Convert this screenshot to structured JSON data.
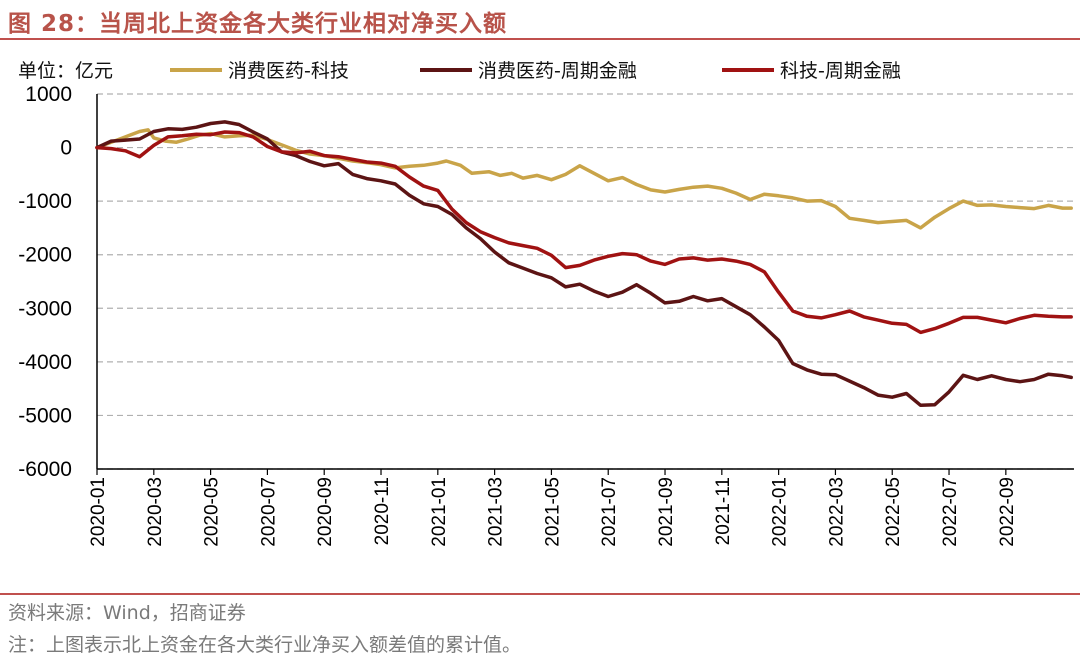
{
  "figure": {
    "title": "图 28：当周北上资金各大类行业相对净买入额",
    "source": "资料来源：Wind，招商证券",
    "note": "注：上图表示北上资金在各大类行业净买入额差值的累计值。"
  },
  "colors": {
    "accent": "#C0504D",
    "grid": "#B0B0B0"
  },
  "chart_data": {
    "type": "line",
    "unit_label": "单位：亿元",
    "ylim": [
      -6000,
      1000
    ],
    "yticks": [
      1000,
      0,
      -1000,
      -2000,
      -3000,
      -4000,
      -5000,
      -6000
    ],
    "xlim": [
      0,
      34.4
    ],
    "xticks": [
      {
        "x": 0,
        "label": "2020-01"
      },
      {
        "x": 2,
        "label": "2020-03"
      },
      {
        "x": 4,
        "label": "2020-05"
      },
      {
        "x": 6,
        "label": "2020-07"
      },
      {
        "x": 8,
        "label": "2020-09"
      },
      {
        "x": 10,
        "label": "2020-11"
      },
      {
        "x": 12,
        "label": "2021-01"
      },
      {
        "x": 14,
        "label": "2021-03"
      },
      {
        "x": 16,
        "label": "2021-05"
      },
      {
        "x": 18,
        "label": "2021-07"
      },
      {
        "x": 20,
        "label": "2021-09"
      },
      {
        "x": 22,
        "label": "2021-11"
      },
      {
        "x": 24,
        "label": "2022-01"
      },
      {
        "x": 26,
        "label": "2022-03"
      },
      {
        "x": 28,
        "label": "2022-05"
      },
      {
        "x": 30,
        "label": "2022-07"
      },
      {
        "x": 32,
        "label": "2022-09"
      }
    ],
    "series": [
      {
        "name": "消费医药-科技",
        "color": "#C9A449",
        "points": [
          [
            0,
            0
          ],
          [
            0.5,
            100
          ],
          [
            1,
            200
          ],
          [
            1.5,
            300
          ],
          [
            1.8,
            330
          ],
          [
            2,
            180
          ],
          [
            2.4,
            120
          ],
          [
            2.8,
            100
          ],
          [
            3.2,
            160
          ],
          [
            3.6,
            230
          ],
          [
            4,
            260
          ],
          [
            4.5,
            200
          ],
          [
            5,
            220
          ],
          [
            5.5,
            230
          ],
          [
            6,
            150
          ],
          [
            6.5,
            50
          ],
          [
            7,
            -50
          ],
          [
            7.5,
            -120
          ],
          [
            8,
            -150
          ],
          [
            8.5,
            -200
          ],
          [
            9,
            -250
          ],
          [
            9.5,
            -280
          ],
          [
            10,
            -320
          ],
          [
            10.5,
            -380
          ],
          [
            11,
            -350
          ],
          [
            11.5,
            -330
          ],
          [
            12,
            -290
          ],
          [
            12.3,
            -250
          ],
          [
            12.8,
            -330
          ],
          [
            13.2,
            -480
          ],
          [
            13.8,
            -450
          ],
          [
            14.2,
            -520
          ],
          [
            14.6,
            -480
          ],
          [
            15,
            -570
          ],
          [
            15.5,
            -520
          ],
          [
            16,
            -600
          ],
          [
            16.5,
            -500
          ],
          [
            17,
            -340
          ],
          [
            17.5,
            -480
          ],
          [
            18,
            -620
          ],
          [
            18.5,
            -560
          ],
          [
            19,
            -690
          ],
          [
            19.5,
            -790
          ],
          [
            20,
            -830
          ],
          [
            20.5,
            -780
          ],
          [
            21,
            -740
          ],
          [
            21.5,
            -720
          ],
          [
            22,
            -760
          ],
          [
            22.5,
            -850
          ],
          [
            23,
            -970
          ],
          [
            23.5,
            -870
          ],
          [
            24,
            -900
          ],
          [
            24.5,
            -940
          ],
          [
            25,
            -1000
          ],
          [
            25.5,
            -990
          ],
          [
            26,
            -1100
          ],
          [
            26.5,
            -1320
          ],
          [
            27,
            -1360
          ],
          [
            27.5,
            -1400
          ],
          [
            28,
            -1380
          ],
          [
            28.5,
            -1360
          ],
          [
            29,
            -1500
          ],
          [
            29.5,
            -1300
          ],
          [
            30,
            -1140
          ],
          [
            30.5,
            -1000
          ],
          [
            31,
            -1080
          ],
          [
            31.5,
            -1070
          ],
          [
            32,
            -1100
          ],
          [
            32.5,
            -1120
          ],
          [
            33,
            -1140
          ],
          [
            33.5,
            -1080
          ],
          [
            34,
            -1130
          ],
          [
            34.3,
            -1130
          ]
        ]
      },
      {
        "name": "消费医药-周期金融",
        "color": "#5C1414",
        "points": [
          [
            0,
            0
          ],
          [
            0.5,
            120
          ],
          [
            1,
            140
          ],
          [
            1.5,
            160
          ],
          [
            2,
            300
          ],
          [
            2.5,
            350
          ],
          [
            3,
            340
          ],
          [
            3.5,
            380
          ],
          [
            4,
            450
          ],
          [
            4.5,
            480
          ],
          [
            5,
            430
          ],
          [
            5.5,
            290
          ],
          [
            6,
            160
          ],
          [
            6.5,
            -80
          ],
          [
            7,
            -150
          ],
          [
            7.5,
            -260
          ],
          [
            8,
            -340
          ],
          [
            8.5,
            -300
          ],
          [
            9,
            -500
          ],
          [
            9.5,
            -580
          ],
          [
            10,
            -620
          ],
          [
            10.5,
            -680
          ],
          [
            11,
            -890
          ],
          [
            11.5,
            -1050
          ],
          [
            12,
            -1100
          ],
          [
            12.5,
            -1250
          ],
          [
            13,
            -1500
          ],
          [
            13.5,
            -1700
          ],
          [
            14,
            -1950
          ],
          [
            14.5,
            -2150
          ],
          [
            15,
            -2250
          ],
          [
            15.5,
            -2350
          ],
          [
            16,
            -2430
          ],
          [
            16.5,
            -2600
          ],
          [
            17,
            -2550
          ],
          [
            17.5,
            -2680
          ],
          [
            18,
            -2780
          ],
          [
            18.5,
            -2700
          ],
          [
            19,
            -2560
          ],
          [
            19.5,
            -2720
          ],
          [
            20,
            -2900
          ],
          [
            20.5,
            -2870
          ],
          [
            21,
            -2780
          ],
          [
            21.5,
            -2860
          ],
          [
            22,
            -2820
          ],
          [
            22.5,
            -2970
          ],
          [
            23,
            -3120
          ],
          [
            23.5,
            -3350
          ],
          [
            24,
            -3600
          ],
          [
            24.5,
            -4030
          ],
          [
            25,
            -4150
          ],
          [
            25.5,
            -4230
          ],
          [
            26,
            -4240
          ],
          [
            26.5,
            -4360
          ],
          [
            27,
            -4480
          ],
          [
            27.5,
            -4620
          ],
          [
            28,
            -4660
          ],
          [
            28.5,
            -4590
          ],
          [
            29,
            -4810
          ],
          [
            29.5,
            -4800
          ],
          [
            30,
            -4560
          ],
          [
            30.5,
            -4250
          ],
          [
            31,
            -4330
          ],
          [
            31.5,
            -4260
          ],
          [
            32,
            -4330
          ],
          [
            32.5,
            -4370
          ],
          [
            33,
            -4330
          ],
          [
            33.5,
            -4230
          ],
          [
            34,
            -4260
          ],
          [
            34.3,
            -4290
          ]
        ]
      },
      {
        "name": "科技-周期金融",
        "color": "#A01212",
        "points": [
          [
            0,
            0
          ],
          [
            0.5,
            -20
          ],
          [
            1,
            -60
          ],
          [
            1.5,
            -170
          ],
          [
            2,
            40
          ],
          [
            2.5,
            200
          ],
          [
            3,
            220
          ],
          [
            3.5,
            250
          ],
          [
            4,
            240
          ],
          [
            4.5,
            290
          ],
          [
            5,
            280
          ],
          [
            5.5,
            200
          ],
          [
            6,
            20
          ],
          [
            6.5,
            -80
          ],
          [
            7,
            -100
          ],
          [
            7.5,
            -70
          ],
          [
            8,
            -150
          ],
          [
            8.5,
            -170
          ],
          [
            9,
            -220
          ],
          [
            9.5,
            -270
          ],
          [
            10,
            -290
          ],
          [
            10.5,
            -350
          ],
          [
            11,
            -550
          ],
          [
            11.5,
            -720
          ],
          [
            12,
            -800
          ],
          [
            12.5,
            -1150
          ],
          [
            13,
            -1400
          ],
          [
            13.5,
            -1570
          ],
          [
            14,
            -1680
          ],
          [
            14.5,
            -1780
          ],
          [
            15,
            -1830
          ],
          [
            15.5,
            -1880
          ],
          [
            16,
            -2010
          ],
          [
            16.5,
            -2240
          ],
          [
            17,
            -2200
          ],
          [
            17.5,
            -2100
          ],
          [
            18,
            -2030
          ],
          [
            18.5,
            -1980
          ],
          [
            19,
            -2000
          ],
          [
            19.5,
            -2120
          ],
          [
            20,
            -2180
          ],
          [
            20.5,
            -2080
          ],
          [
            21,
            -2060
          ],
          [
            21.5,
            -2100
          ],
          [
            22,
            -2080
          ],
          [
            22.5,
            -2120
          ],
          [
            23,
            -2180
          ],
          [
            23.5,
            -2320
          ],
          [
            24,
            -2700
          ],
          [
            24.5,
            -3050
          ],
          [
            25,
            -3150
          ],
          [
            25.5,
            -3180
          ],
          [
            26,
            -3120
          ],
          [
            26.5,
            -3050
          ],
          [
            27,
            -3160
          ],
          [
            27.5,
            -3220
          ],
          [
            28,
            -3280
          ],
          [
            28.5,
            -3300
          ],
          [
            29,
            -3450
          ],
          [
            29.5,
            -3380
          ],
          [
            30,
            -3280
          ],
          [
            30.5,
            -3170
          ],
          [
            31,
            -3170
          ],
          [
            31.5,
            -3220
          ],
          [
            32,
            -3270
          ],
          [
            32.5,
            -3190
          ],
          [
            33,
            -3130
          ],
          [
            33.5,
            -3150
          ],
          [
            34,
            -3160
          ],
          [
            34.3,
            -3160
          ]
        ]
      }
    ]
  }
}
